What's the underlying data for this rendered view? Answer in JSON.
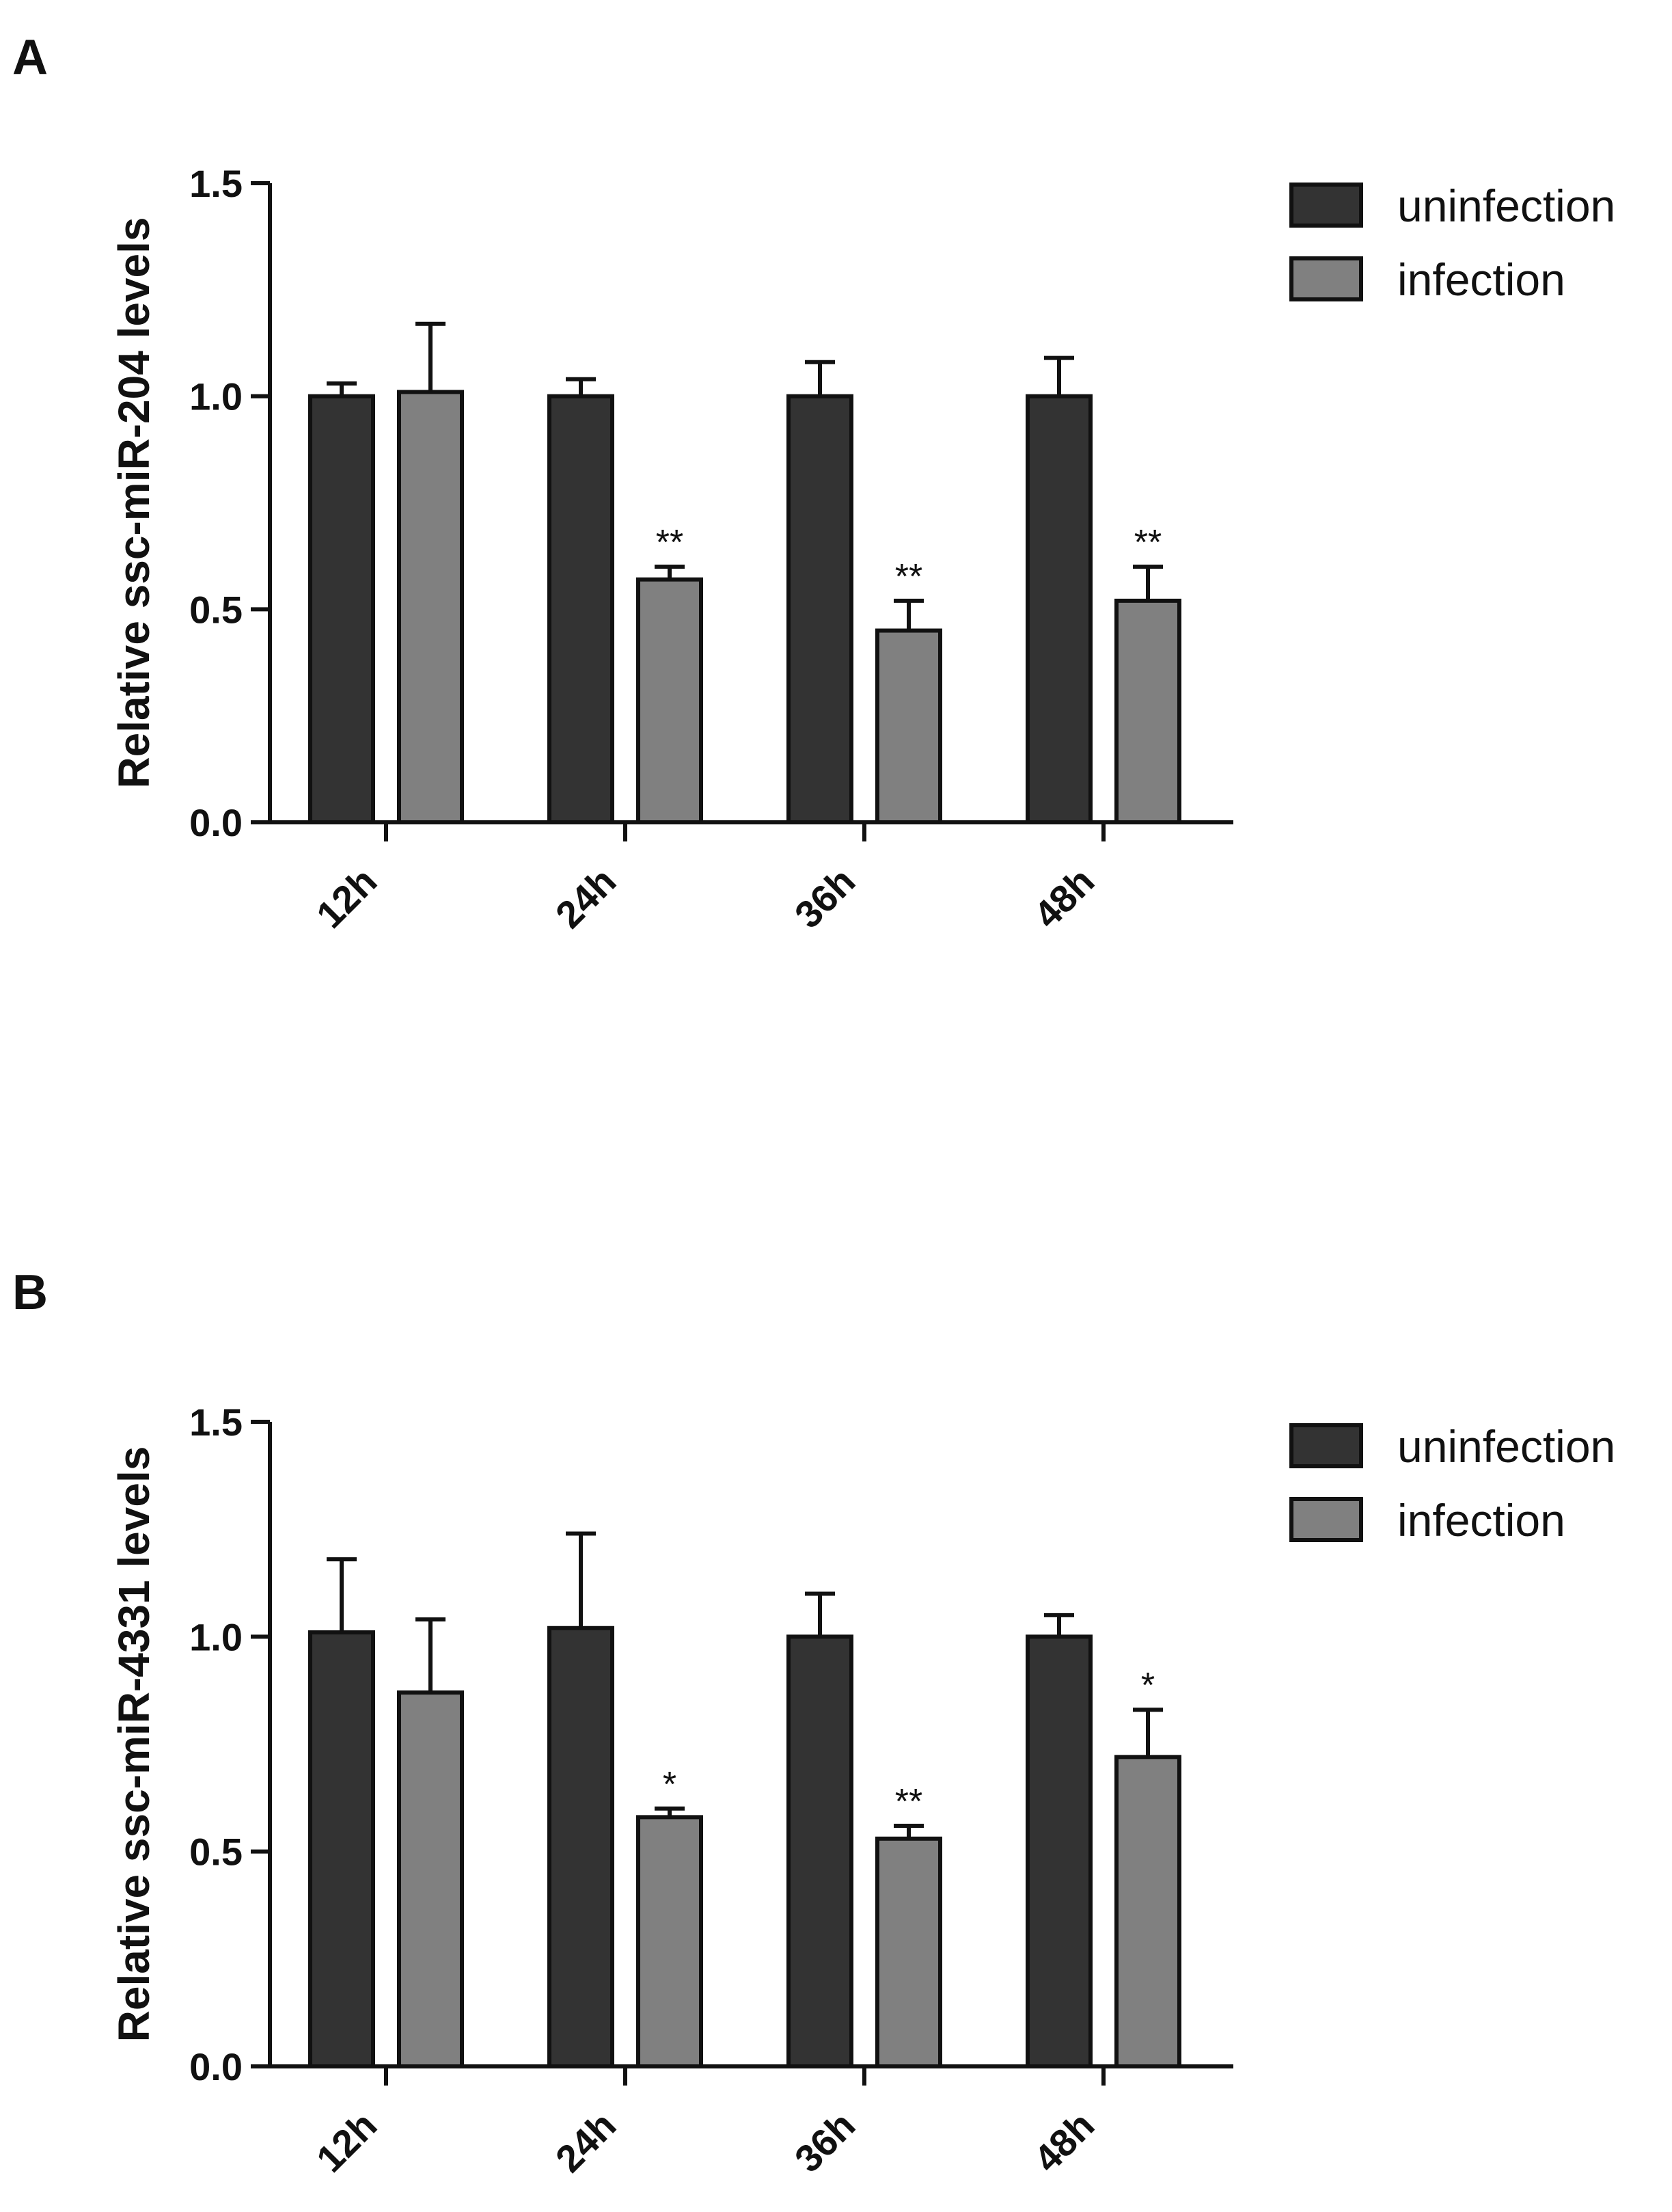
{
  "panels": [
    {
      "letter": "A",
      "legend": [
        "uninfection",
        "infection"
      ]
    },
    {
      "letter": "B",
      "legend": [
        "uninfection",
        "infection"
      ]
    }
  ],
  "colors": {
    "uninfection": "#333333",
    "infection": "#808080",
    "axis": "#111111"
  },
  "chart_data": [
    {
      "type": "bar",
      "ylabel": "Relative ssc-miR-204 levels",
      "xlabel": "",
      "categories": [
        "12h",
        "24h",
        "36h",
        "48h"
      ],
      "ylim": [
        0,
        1.5
      ],
      "yticks": [
        "0.0",
        "0.5",
        "1.0",
        "1.5"
      ],
      "grid": false,
      "legend_position": "top-right",
      "series": [
        {
          "name": "uninfection",
          "values": [
            1.0,
            1.0,
            1.0,
            1.0
          ],
          "errors": [
            0.03,
            0.04,
            0.08,
            0.09
          ],
          "significance": [
            "",
            "",
            "",
            ""
          ]
        },
        {
          "name": "infection",
          "values": [
            1.01,
            0.57,
            0.45,
            0.52
          ],
          "errors": [
            0.16,
            0.03,
            0.07,
            0.08
          ],
          "significance": [
            "",
            "**",
            "**",
            "**"
          ]
        }
      ]
    },
    {
      "type": "bar",
      "ylabel": "Relative ssc-miR-4331 levels",
      "xlabel": "",
      "categories": [
        "12h",
        "24h",
        "36h",
        "48h"
      ],
      "ylim": [
        0,
        1.5
      ],
      "yticks": [
        "0.0",
        "0.5",
        "1.0",
        "1.5"
      ],
      "grid": false,
      "legend_position": "top-right",
      "series": [
        {
          "name": "uninfection",
          "values": [
            1.01,
            1.02,
            1.0,
            1.0
          ],
          "errors": [
            0.17,
            0.22,
            0.1,
            0.05
          ],
          "significance": [
            "",
            "",
            "",
            ""
          ]
        },
        {
          "name": "infection",
          "values": [
            0.87,
            0.58,
            0.53,
            0.72
          ],
          "errors": [
            0.17,
            0.02,
            0.03,
            0.11
          ],
          "significance": [
            "",
            "*",
            "**",
            "*"
          ]
        }
      ]
    }
  ]
}
